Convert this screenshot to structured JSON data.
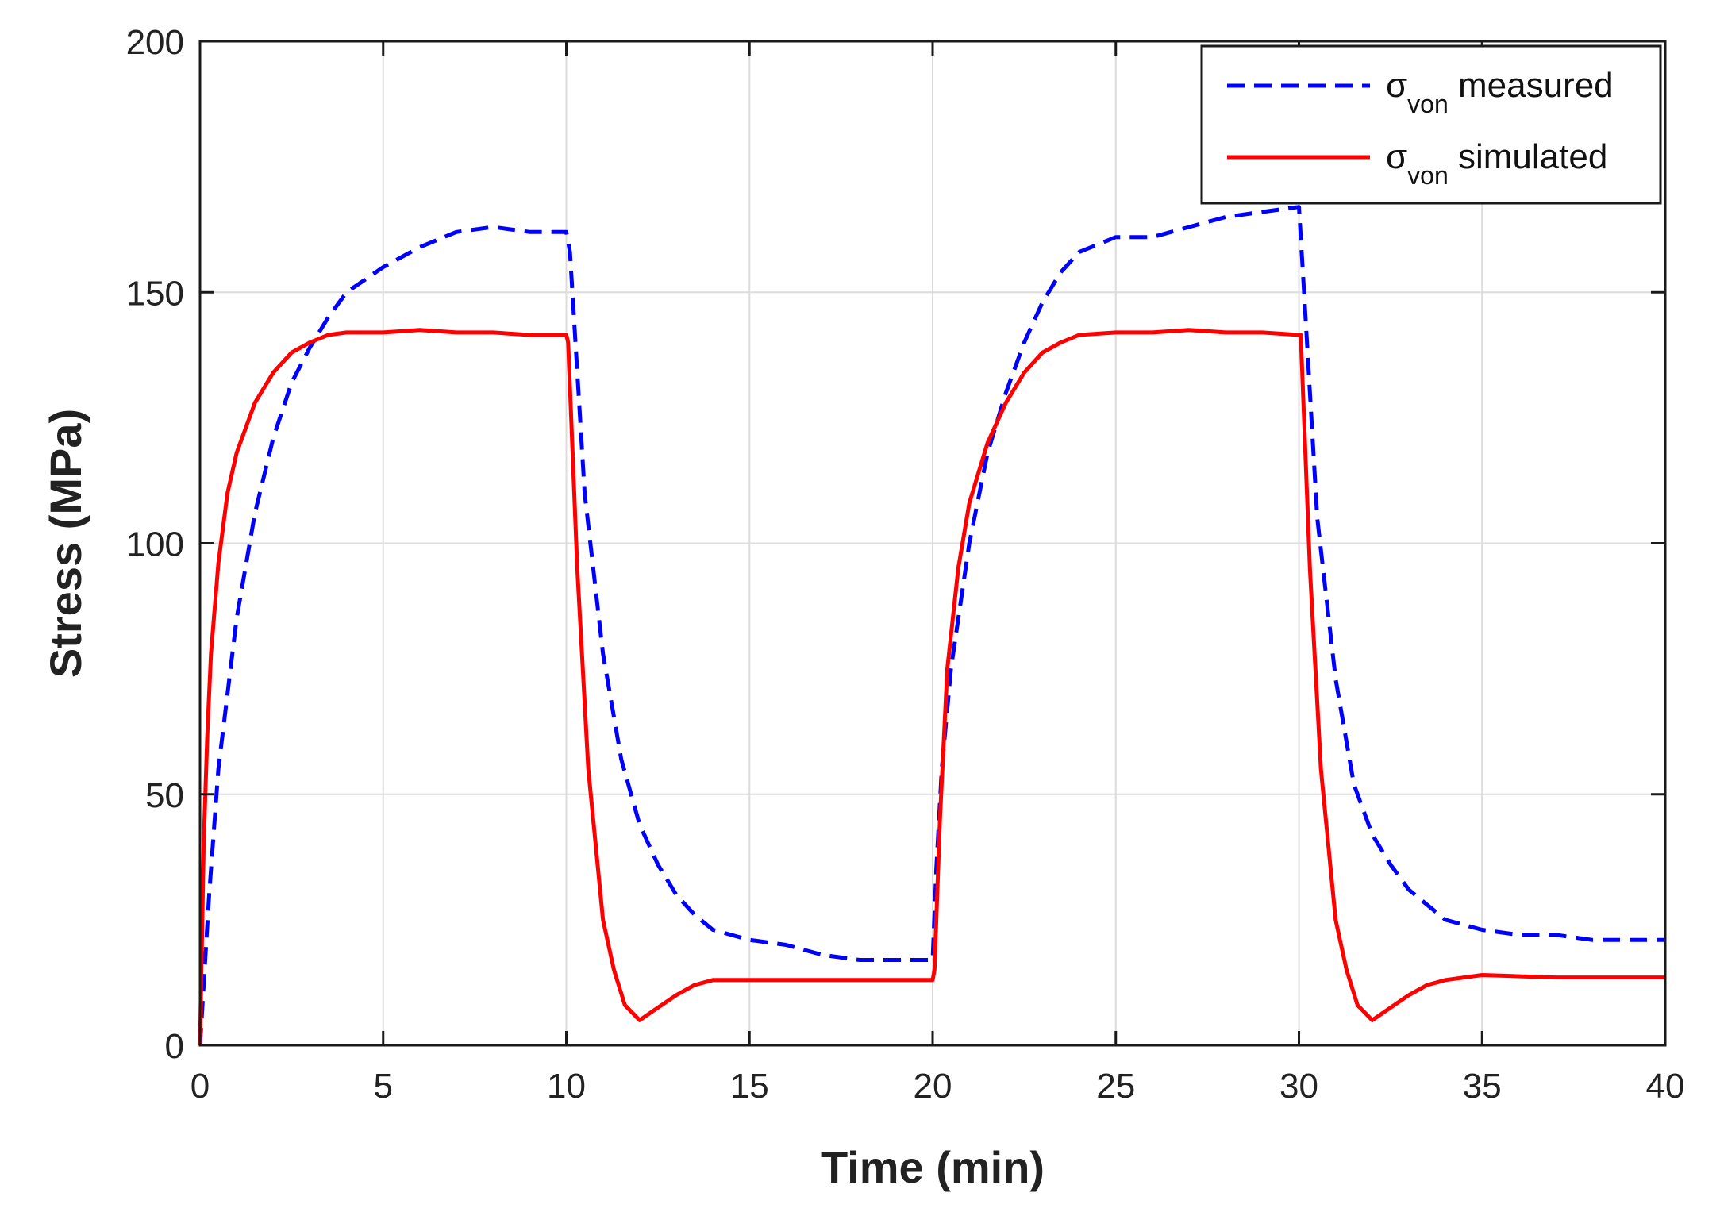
{
  "chart_data": {
    "type": "line",
    "title": "",
    "xlabel": "Time (min)",
    "ylabel": "Stress (MPa)",
    "xlim": [
      0,
      40
    ],
    "ylim": [
      0,
      200
    ],
    "xticks": [
      0,
      5,
      10,
      15,
      20,
      25,
      30,
      35,
      40
    ],
    "yticks": [
      0,
      50,
      100,
      150,
      200
    ],
    "grid": true,
    "legend_position": "top-right",
    "series": [
      {
        "name": "σvon measured",
        "symbol": "σ",
        "subscript": "von",
        "suffix": "measured",
        "color": "#0000ff",
        "style": "dashed",
        "x": [
          0,
          0.25,
          0.5,
          1,
          1.5,
          2,
          2.5,
          3,
          3.5,
          4,
          5,
          6,
          7,
          8,
          9,
          10,
          10.1,
          10.5,
          11,
          11.5,
          12,
          12.5,
          13,
          13.5,
          14,
          15,
          16,
          17,
          18,
          19,
          20,
          20.1,
          20.25,
          20.5,
          21,
          21.5,
          22,
          22.5,
          23,
          23.5,
          24,
          25,
          26,
          27,
          28,
          29,
          30,
          30.1,
          30.5,
          31,
          31.5,
          32,
          32.5,
          33,
          33.5,
          34,
          35,
          36,
          37,
          38,
          39,
          40
        ],
        "y": [
          0,
          30,
          55,
          85,
          106,
          121,
          132,
          139,
          145,
          150,
          155,
          159,
          162,
          163,
          162,
          162,
          158,
          110,
          78,
          57,
          44,
          36,
          30,
          26,
          23,
          21,
          20,
          18,
          17,
          17,
          17,
          35,
          55,
          75,
          100,
          118,
          130,
          140,
          148,
          154,
          158,
          161,
          161,
          163,
          165,
          166,
          167,
          155,
          105,
          73,
          52,
          42,
          36,
          31,
          28,
          25,
          23,
          22,
          22,
          21,
          21,
          21
        ]
      },
      {
        "name": "σvon simulated",
        "symbol": "σ",
        "subscript": "von",
        "suffix": "simulated",
        "color": "#ff0000",
        "style": "solid",
        "x": [
          0,
          0.1,
          0.2,
          0.3,
          0.5,
          0.75,
          1,
          1.5,
          2,
          2.5,
          3,
          3.5,
          4,
          5,
          6,
          7,
          8,
          9,
          10,
          10.05,
          10.3,
          10.6,
          11,
          11.3,
          11.6,
          12,
          12.4,
          13,
          13.5,
          14,
          15,
          17,
          20,
          20.05,
          20.2,
          20.4,
          20.7,
          21,
          21.5,
          22,
          22.5,
          23,
          23.5,
          24,
          25,
          26,
          27,
          28,
          29,
          30,
          30.05,
          30.3,
          30.6,
          31,
          31.3,
          31.6,
          32,
          32.4,
          33,
          33.5,
          34,
          35,
          37,
          40
        ],
        "y": [
          0,
          40,
          62,
          78,
          96,
          110,
          118,
          128,
          134,
          138,
          140,
          141.5,
          142,
          142,
          142.5,
          142,
          142,
          141.5,
          141.5,
          140,
          95,
          55,
          25,
          15,
          8,
          5,
          7,
          10,
          12,
          13,
          13,
          13,
          13,
          15,
          45,
          75,
          95,
          108,
          120,
          128,
          134,
          138,
          140,
          141.5,
          142,
          142,
          142.5,
          142,
          142,
          141.5,
          141.5,
          95,
          55,
          25,
          15,
          8,
          5,
          7,
          10,
          12,
          13,
          14,
          13.5,
          13.5
        ]
      }
    ]
  }
}
